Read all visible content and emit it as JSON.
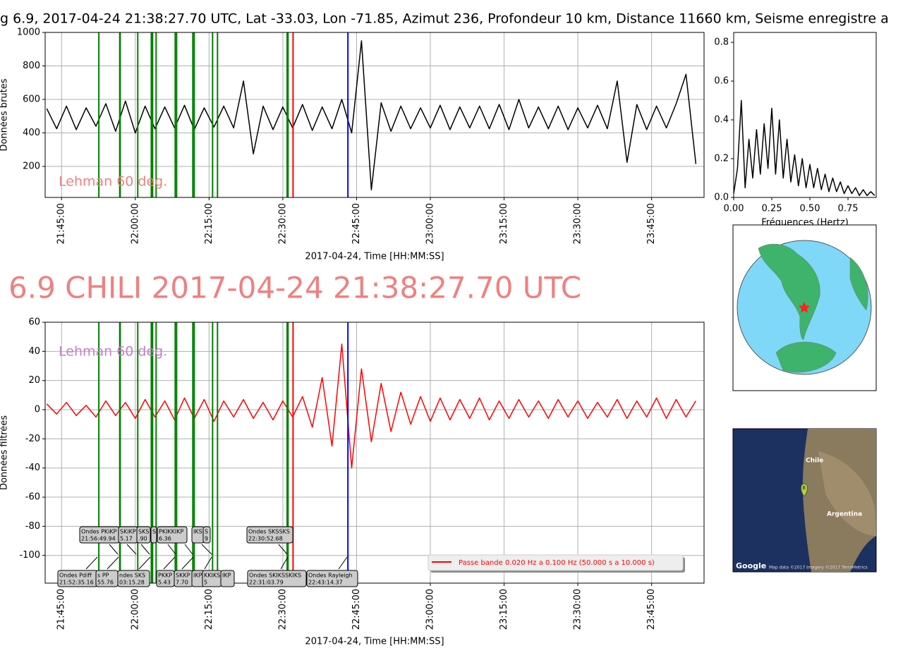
{
  "header": {
    "title": "g 6.9, 2017-04-24 21:38:27.70 UTC, Lat -33.03, Lon -71.85, Azimut 236, Profondeur 10 km, Distance 11660 km, Seisme enregistre a",
    "big_title": "6.9 CHILI 2017-04-24 21:38:27.70 UTC"
  },
  "chart_data": [
    {
      "type": "line",
      "ylabel": "Données brutes",
      "xlabel": "2017-04-24, Time [HH:MM:SS]",
      "annotation": "Lehman 60 deg.",
      "annotation_color": "#f08080",
      "x": [
        "21:42:00",
        "21:44:00",
        "21:46:00",
        "21:48:00",
        "21:50:00",
        "21:52:00",
        "21:54:00",
        "21:56:00",
        "21:58:00",
        "22:00:00",
        "22:02:00",
        "22:04:00",
        "22:06:00",
        "22:08:00",
        "22:10:00",
        "22:12:00",
        "22:14:00",
        "22:16:00",
        "22:18:00",
        "22:20:00",
        "22:22:00",
        "22:24:00",
        "22:26:00",
        "22:28:00",
        "22:30:00",
        "22:32:00",
        "22:34:00",
        "22:36:00",
        "22:38:00",
        "22:40:00",
        "22:42:00",
        "22:44:00",
        "22:46:00",
        "22:48:00",
        "22:50:00",
        "22:52:00",
        "22:54:00",
        "22:56:00",
        "22:58:00",
        "23:00:00",
        "23:02:00",
        "23:04:00",
        "23:06:00",
        "23:08:00",
        "23:10:00",
        "23:12:00",
        "23:14:00",
        "23:16:00",
        "23:18:00",
        "23:20:00",
        "23:22:00",
        "23:24:00",
        "23:26:00",
        "23:28:00",
        "23:30:00",
        "23:32:00",
        "23:34:00",
        "23:36:00",
        "23:38:00",
        "23:40:00",
        "23:42:00",
        "23:44:00",
        "23:46:00",
        "23:48:00",
        "23:50:00",
        "23:52:00",
        "23:54:00"
      ],
      "series": [
        {
          "color": "#000000",
          "values": [
            545,
            425,
            560,
            420,
            550,
            440,
            575,
            410,
            590,
            400,
            560,
            425,
            555,
            430,
            565,
            420,
            550,
            435,
            560,
            430,
            710,
            275,
            560,
            420,
            555,
            430,
            570,
            415,
            555,
            425,
            600,
            400,
            950,
            60,
            580,
            410,
            560,
            425,
            550,
            430,
            565,
            420,
            555,
            430,
            560,
            425,
            570,
            420,
            600,
            430,
            555,
            425,
            560,
            420,
            550,
            430,
            565,
            425,
            710,
            225,
            570,
            420,
            560,
            430,
            575,
            750,
            215
          ]
        }
      ],
      "xlim": [
        "21:41:40",
        "23:55:40"
      ],
      "ylim": [
        15,
        1000
      ],
      "xticks": [
        "21:45:00",
        "22:00:00",
        "22:15:00",
        "22:30:00",
        "22:45:00",
        "23:00:00",
        "23:15:00",
        "23:30:00",
        "23:45:00"
      ],
      "yticks": [
        200,
        400,
        600,
        800,
        1000
      ],
      "grid": true,
      "vlines": [
        {
          "time": "21:52:35.16",
          "color": "#008000"
        },
        {
          "time": "21:56:49.94",
          "color": "#008000"
        },
        {
          "time": "21:56:55.76",
          "color": "#008000"
        },
        {
          "time": "22:00:30",
          "color": "#008000"
        },
        {
          "time": "22:03:15.28",
          "color": "#008000"
        },
        {
          "time": "22:03:31",
          "color": "#008000"
        },
        {
          "time": "22:04:14",
          "color": "#008000"
        },
        {
          "time": "22:08:07",
          "color": "#008000"
        },
        {
          "time": "22:08:24",
          "color": "#008000"
        },
        {
          "time": "22:11:42",
          "color": "#008000"
        },
        {
          "time": "22:11:59",
          "color": "#008000"
        },
        {
          "time": "22:15:43",
          "color": "#008000"
        },
        {
          "time": "22:16:43",
          "color": "#008000"
        },
        {
          "time": "22:30:52.68",
          "color": "#008000"
        },
        {
          "time": "22:31:03.79",
          "color": "#008000"
        },
        {
          "time": "22:32:05",
          "color": "#ff0000"
        },
        {
          "time": "22:43:14.37",
          "color": "#0000ff"
        }
      ]
    },
    {
      "type": "line",
      "xlabel": "Fréquences (Hertz)",
      "x": [
        0,
        0.025,
        0.05,
        0.075,
        0.1,
        0.125,
        0.15,
        0.175,
        0.2,
        0.225,
        0.25,
        0.275,
        0.3,
        0.325,
        0.35,
        0.375,
        0.4,
        0.425,
        0.45,
        0.475,
        0.5,
        0.525,
        0.55,
        0.575,
        0.6,
        0.625,
        0.65,
        0.675,
        0.7,
        0.725,
        0.75,
        0.775,
        0.8,
        0.825,
        0.85,
        0.875,
        0.9,
        0.925
      ],
      "series": [
        {
          "color": "#000000",
          "values": [
            0.02,
            0.15,
            0.5,
            0.05,
            0.3,
            0.1,
            0.35,
            0.12,
            0.38,
            0.15,
            0.46,
            0.12,
            0.4,
            0.1,
            0.3,
            0.08,
            0.22,
            0.06,
            0.2,
            0.05,
            0.17,
            0.05,
            0.15,
            0.04,
            0.12,
            0.03,
            0.1,
            0.03,
            0.08,
            0.02,
            0.06,
            0.02,
            0.05,
            0.01,
            0.04,
            0.01,
            0.03,
            0.01
          ]
        }
      ],
      "xlim": [
        0,
        0.935
      ],
      "ylim": [
        0,
        0.851
      ],
      "xticks": [
        {
          "value": 0,
          "label": "0.00"
        },
        0.25,
        {
          "value": 0.5,
          "label": "0.50"
        },
        0.75
      ],
      "yticks": [
        {
          "value": 0,
          "label": "0.0"
        },
        0.2,
        0.4,
        0.6,
        0.8
      ],
      "grid": false
    },
    {
      "type": "line",
      "ylabel": "Données filtrées",
      "xlabel": "2017-04-24, Time [HH:MM:SS]",
      "annotation": "Lehman 60 deg.",
      "annotation_color": "#c87dc8",
      "legend": "lower right",
      "x": [
        "21:42:00",
        "21:44:00",
        "21:46:00",
        "21:48:00",
        "21:50:00",
        "21:52:00",
        "21:54:00",
        "21:56:00",
        "21:58:00",
        "22:00:00",
        "22:02:00",
        "22:04:00",
        "22:06:00",
        "22:08:00",
        "22:10:00",
        "22:12:00",
        "22:14:00",
        "22:16:00",
        "22:18:00",
        "22:20:00",
        "22:22:00",
        "22:24:00",
        "22:26:00",
        "22:28:00",
        "22:30:00",
        "22:32:00",
        "22:34:00",
        "22:36:00",
        "22:38:00",
        "22:40:00",
        "22:42:00",
        "22:44:00",
        "22:46:00",
        "22:48:00",
        "22:50:00",
        "22:52:00",
        "22:54:00",
        "22:56:00",
        "22:58:00",
        "23:00:00",
        "23:02:00",
        "23:04:00",
        "23:06:00",
        "23:08:00",
        "23:10:00",
        "23:12:00",
        "23:14:00",
        "23:16:00",
        "23:18:00",
        "23:20:00",
        "23:22:00",
        "23:24:00",
        "23:26:00",
        "23:28:00",
        "23:30:00",
        "23:32:00",
        "23:34:00",
        "23:36:00",
        "23:38:00",
        "23:40:00",
        "23:42:00",
        "23:44:00",
        "23:46:00",
        "23:48:00",
        "23:50:00",
        "23:52:00",
        "23:54:00"
      ],
      "series": [
        {
          "name": "Passe bande 0.020 Hz a 0.100 Hz (50.000 s a 10.000 s)",
          "color": "#ff0000",
          "values": [
            4,
            -3,
            5,
            -4,
            3,
            -5,
            6,
            -4,
            5,
            -6,
            7,
            -5,
            6,
            -7,
            8,
            -6,
            7,
            -8,
            6,
            -5,
            7,
            -6,
            5,
            -7,
            6,
            -5,
            9,
            -12,
            22,
            -25,
            45,
            -40,
            28,
            -22,
            18,
            -15,
            12,
            -10,
            9,
            -8,
            8,
            -7,
            7,
            -6,
            8,
            -7,
            6,
            -6,
            7,
            -5,
            6,
            -6,
            7,
            -5,
            6,
            -6,
            5,
            -5,
            7,
            -6,
            6,
            -5,
            8,
            -6,
            7,
            -5,
            6
          ]
        }
      ],
      "xlim": [
        "21:41:40",
        "23:55:40"
      ],
      "ylim": [
        -119,
        60
      ],
      "xticks": [
        "21:45:00",
        "22:00:00",
        "22:15:00",
        "22:30:00",
        "22:45:00",
        "23:00:00",
        "23:15:00",
        "23:30:00",
        "23:45:00"
      ],
      "yticks": [
        -100,
        -80,
        -60,
        -40,
        -20,
        0,
        20,
        40,
        60
      ],
      "grid": true,
      "vlines": [
        {
          "time": "21:52:35.16",
          "color": "#008000"
        },
        {
          "time": "21:56:49.94",
          "color": "#008000"
        },
        {
          "time": "21:56:55.76",
          "color": "#008000"
        },
        {
          "time": "22:00:30",
          "color": "#008000"
        },
        {
          "time": "22:03:15.28",
          "color": "#008000"
        },
        {
          "time": "22:03:31",
          "color": "#008000"
        },
        {
          "time": "22:04:14",
          "color": "#008000"
        },
        {
          "time": "22:08:07",
          "color": "#008000"
        },
        {
          "time": "22:08:24",
          "color": "#008000"
        },
        {
          "time": "22:11:42",
          "color": "#008000"
        },
        {
          "time": "22:11:59",
          "color": "#008000"
        },
        {
          "time": "22:15:43",
          "color": "#008000"
        },
        {
          "time": "22:16:43",
          "color": "#008000"
        },
        {
          "time": "22:30:52.68",
          "color": "#008000"
        },
        {
          "time": "22:31:03.79",
          "color": "#008000"
        },
        {
          "time": "22:32:05",
          "color": "#ff0000"
        },
        {
          "time": "22:43:14.37",
          "color": "#0000ff"
        }
      ],
      "phase_labels": [
        [
          "Ondes PKiKP",
          "21:56:49.94"
        ],
        [
          "SKiKP",
          "5.17"
        ],
        [
          "SKS",
          ".90"
        ],
        [
          "S"
        ],
        [
          "PKIKKIKP",
          "6.36"
        ],
        [
          "IKS"
        ],
        [
          "S",
          "9"
        ],
        [
          "Ondes SKSSKS",
          "22:30:52.68"
        ],
        [
          "Ondes Pdiff",
          "21:52:35.16"
        ],
        [
          "s PP",
          "55.76"
        ],
        [
          "ndes SKS",
          "03:15.28"
        ],
        [
          "PKKP",
          "5.43"
        ],
        [
          "SKKP",
          "7.70"
        ],
        [
          "IKP"
        ],
        [
          "KKIKS",
          "5"
        ],
        [
          "IKP"
        ],
        [
          "Ondes SKIKSSKIKS",
          "22:31:03.79"
        ],
        [
          "Ondes Rayleigh",
          "22:43:14.37"
        ]
      ]
    }
  ],
  "maps": {
    "satellite": {
      "labels": [
        "Chile",
        "Argentina"
      ],
      "marker": "E",
      "brand": "Google",
      "credit": "Map data ©2017 Imagery ©2017 TerraMetrics"
    }
  }
}
